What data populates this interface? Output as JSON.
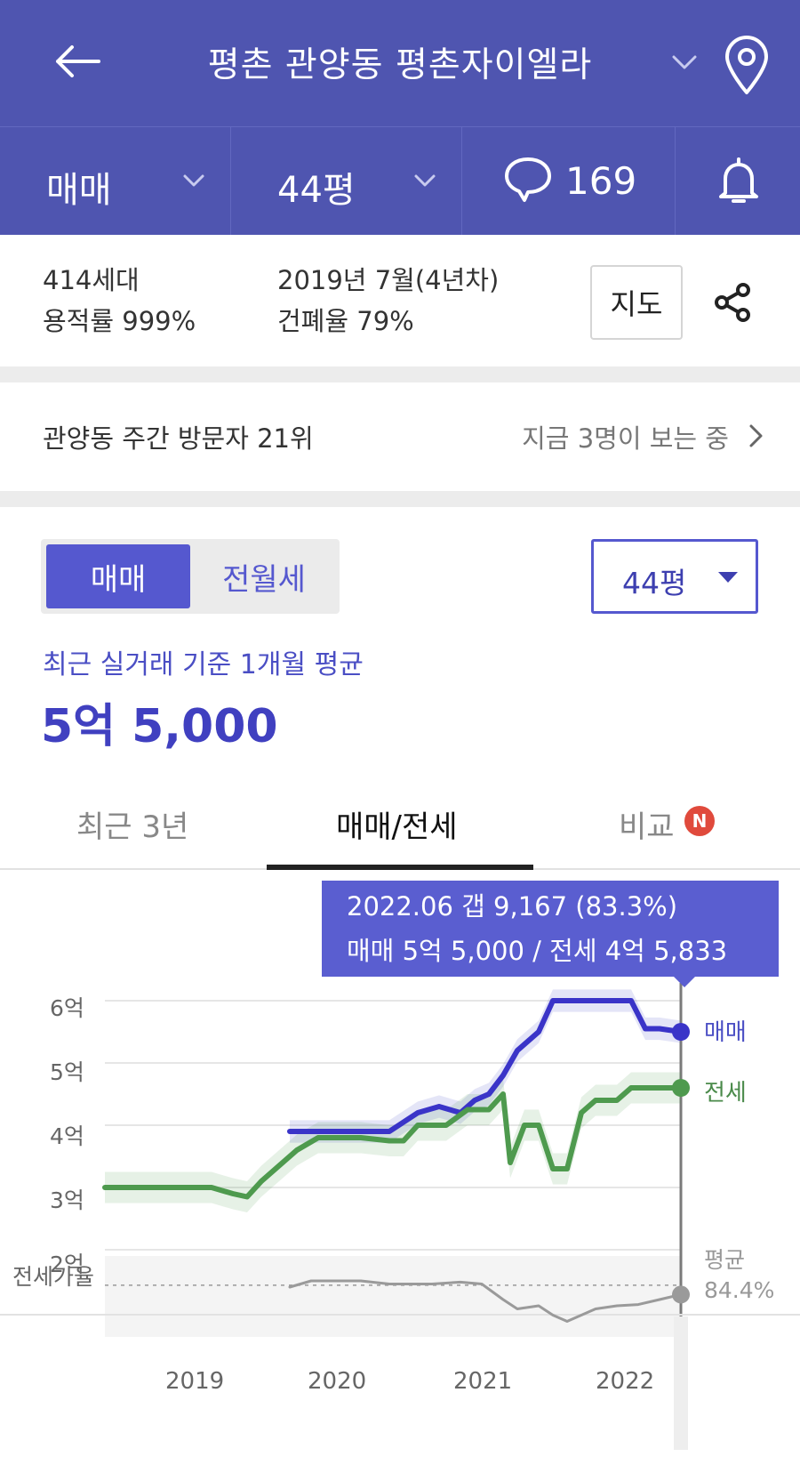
{
  "header": {
    "title": "평촌 관양동 평촌자이엘라",
    "accent": "#4f55b0"
  },
  "filters": {
    "trade_type": "매매",
    "size": "44평",
    "comment_count": "169"
  },
  "info": {
    "households": "414세대",
    "floor_area_ratio": "용적률 999%",
    "built": "2019년 7월(4년차)",
    "coverage_ratio": "건폐율 79%",
    "map_button": "지도"
  },
  "visitor": {
    "rank": "관양동 주간 방문자 21위",
    "now_watching": "지금 3명이 보는 중"
  },
  "price": {
    "segments": [
      "매매",
      "전월세"
    ],
    "size_select": "44평",
    "caption": "최근 실거래 기준 1개월 평균",
    "value": "5억 5,000"
  },
  "tabs": [
    "최근 3년",
    "매매/전세",
    "비교"
  ],
  "badge": "N",
  "tooltip": {
    "line1": "2022.06  갭 9,167 (83.3%)",
    "line2": "매매 5억 5,000 / 전세 4억 5,833"
  },
  "chart_labels": {
    "ratio_label": "전세가율",
    "sale": "매매",
    "jeonse": "전세",
    "avg_label": "평균",
    "avg_value": "84.4%"
  },
  "chart_data": {
    "type": "line",
    "y_ticks": [
      "6억",
      "5억",
      "4억",
      "3억",
      "2억"
    ],
    "x_ticks": [
      "2019",
      "2020",
      "2021",
      "2022"
    ],
    "ylim": [
      2,
      6
    ],
    "xlim": [
      2018.4,
      2022.45
    ],
    "series": [
      {
        "name": "매매",
        "color": "#3a34c8",
        "x": [
          2019.7,
          2020.0,
          2020.2,
          2020.4,
          2020.6,
          2020.75,
          2020.9,
          2021.0,
          2021.1,
          2021.2,
          2021.3,
          2021.45,
          2021.55,
          2021.7,
          2021.85,
          2022.0,
          2022.1,
          2022.2,
          2022.3,
          2022.45
        ],
        "y": [
          3.9,
          3.9,
          3.9,
          3.9,
          4.2,
          4.3,
          4.2,
          4.4,
          4.5,
          4.8,
          5.2,
          5.5,
          6.0,
          6.0,
          6.0,
          6.0,
          6.0,
          5.55,
          5.55,
          5.5
        ]
      },
      {
        "name": "전세",
        "color": "#4e9a4e",
        "x": [
          2018.4,
          2018.6,
          2018.8,
          2019.0,
          2019.15,
          2019.3,
          2019.4,
          2019.5,
          2019.6,
          2019.75,
          2019.9,
          2020.0,
          2020.2,
          2020.4,
          2020.5,
          2020.6,
          2020.8,
          2020.95,
          2021.1,
          2021.2,
          2021.25,
          2021.35,
          2021.45,
          2021.55,
          2021.65,
          2021.75,
          2021.85,
          2022.0,
          2022.1,
          2022.2,
          2022.45
        ],
        "y": [
          3.0,
          3.0,
          3.0,
          3.0,
          3.0,
          2.9,
          2.85,
          3.1,
          3.3,
          3.6,
          3.8,
          3.8,
          3.8,
          3.75,
          3.75,
          4.0,
          4.0,
          4.25,
          4.25,
          4.5,
          3.4,
          4.0,
          4.0,
          3.3,
          3.3,
          4.2,
          4.4,
          4.4,
          4.6,
          4.6,
          4.6
        ]
      },
      {
        "name": "전세가율",
        "color": "#9a9a9a",
        "x": [
          2019.7,
          2019.85,
          2020.0,
          2020.2,
          2020.4,
          2020.5,
          2020.7,
          2020.9,
          2021.05,
          2021.2,
          2021.3,
          2021.45,
          2021.55,
          2021.65,
          2021.75,
          2021.85,
          2022.0,
          2022.15,
          2022.3,
          2022.45
        ],
        "y": [
          1.4,
          1.5,
          1.5,
          1.5,
          1.45,
          1.45,
          1.45,
          1.48,
          1.45,
          1.2,
          1.05,
          1.1,
          0.95,
          0.85,
          0.95,
          1.05,
          1.1,
          1.12,
          1.2,
          1.28
        ]
      }
    ],
    "grid": true,
    "legend": "right"
  }
}
